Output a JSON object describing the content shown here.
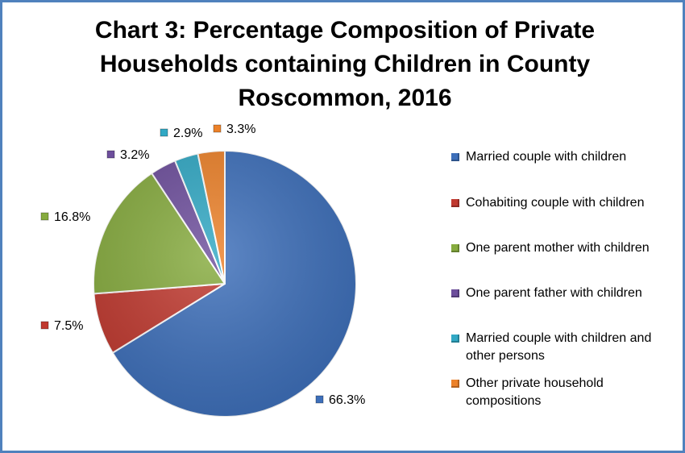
{
  "chart_data": {
    "type": "pie",
    "title_lines": [
      "Chart 3: Percentage Composition of Private",
      "Households containing Children in County",
      "Roscommon, 2016"
    ],
    "categories": [
      "Married couple with children",
      "Cohabiting couple with children",
      "One parent mother with children",
      "One parent father with children",
      "Married couple with children and other persons",
      "Other private household compositions"
    ],
    "legend_lines": [
      [
        "Married couple with children"
      ],
      [
        "Cohabiting couple with children"
      ],
      [
        "One parent mother with children"
      ],
      [
        "One parent father with children"
      ],
      [
        "Married couple with children and",
        "other persons"
      ],
      [
        "Other private household",
        "compositions"
      ]
    ],
    "values": [
      66.3,
      7.5,
      16.8,
      3.2,
      2.9,
      3.3
    ],
    "data_labels": [
      "66.3%",
      "7.5%",
      "16.8%",
      "3.2%",
      "2.9%",
      "3.3%"
    ],
    "colors": [
      "#3d6fba",
      "#c0392f",
      "#86ab3e",
      "#6d4e9c",
      "#31a8c4",
      "#ec8129"
    ],
    "legend_position": "right",
    "start_angle_deg": 0,
    "direction": "clockwise"
  }
}
